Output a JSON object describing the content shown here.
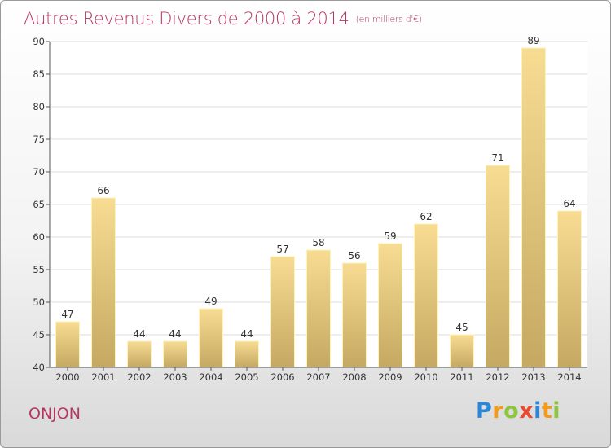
{
  "header": {
    "title": "Autres Revenus Divers de 2000 à 2014",
    "unit": "(en milliers d'€)"
  },
  "footer": {
    "town": "ONJON",
    "brand": [
      "P",
      "r",
      "o",
      "x",
      "i",
      "t",
      "i"
    ]
  },
  "colors": {
    "title": "#b5365e",
    "bar_light": "#f7dc92",
    "bar_dark": "#c8ad68",
    "grid": "#dddddd"
  },
  "chart_data": {
    "type": "bar",
    "title": "Autres Revenus Divers de 2000 à 2014",
    "xlabel": "",
    "ylabel": "",
    "categories": [
      "2000",
      "2001",
      "2002",
      "2003",
      "2004",
      "2005",
      "2006",
      "2007",
      "2008",
      "2009",
      "2010",
      "2011",
      "2012",
      "2013",
      "2014"
    ],
    "values": [
      47,
      66,
      44,
      44,
      49,
      44,
      57,
      58,
      56,
      59,
      62,
      45,
      71,
      89,
      64
    ],
    "ylim": [
      40,
      90
    ],
    "yticks": [
      40,
      45,
      50,
      55,
      60,
      65,
      70,
      75,
      80,
      85,
      90
    ],
    "grid": true,
    "legend": "none"
  }
}
